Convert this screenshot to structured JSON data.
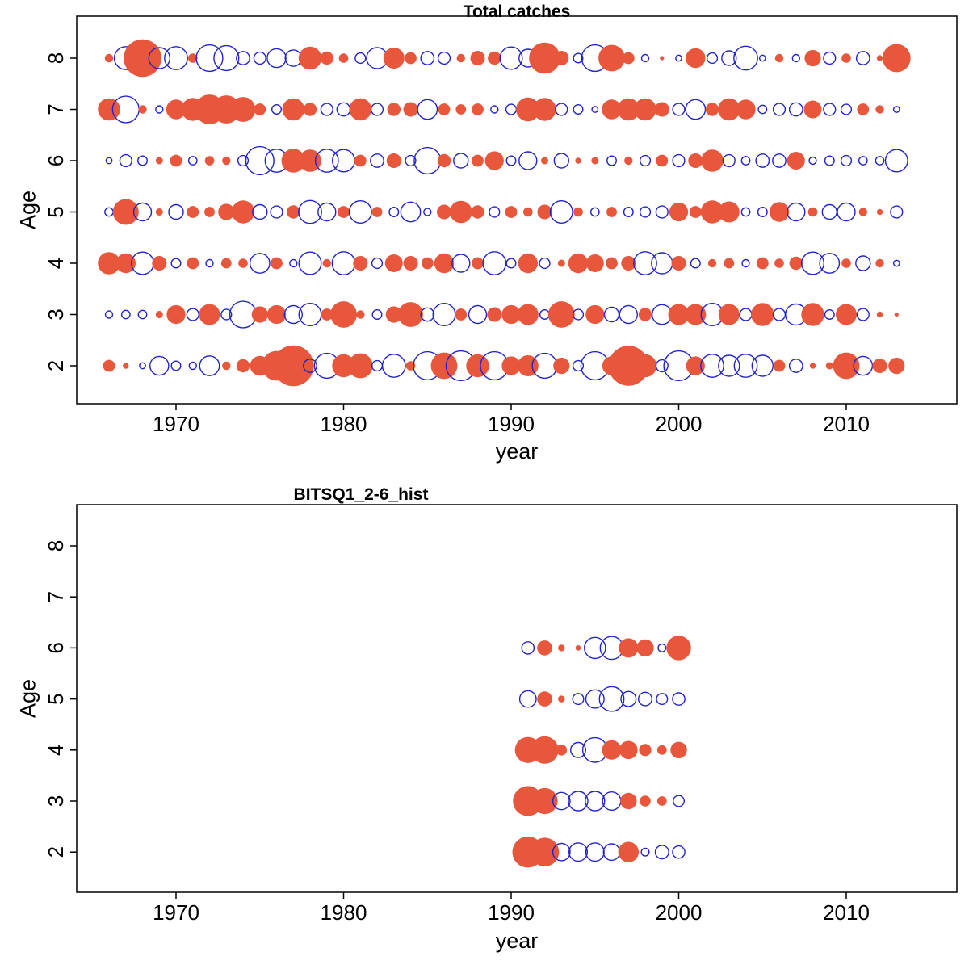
{
  "figure": {
    "background": "#ffffff",
    "positive_color": "#e8563c",
    "negative_color": "#2323cc",
    "axis_color": "#000000"
  },
  "chart_data": [
    {
      "type": "bubble",
      "title": "Total catches",
      "xlabel": "year",
      "ylabel": "Age",
      "x_ticks": [
        "1970",
        "1980",
        "1990",
        "2000",
        "2010"
      ],
      "y_ticks": [
        "2",
        "3",
        "4",
        "5",
        "6",
        "7",
        "8"
      ],
      "xlim": [
        1964,
        2016.5
      ],
      "ylim": [
        1.5,
        8.8
      ],
      "grid": false,
      "legend": null,
      "encoding": "filled circle = positive value, open circle = negative value, radius ~ sqrt(|value|)",
      "years": [
        1966,
        1967,
        1968,
        1969,
        1970,
        1971,
        1972,
        1973,
        1974,
        1975,
        1976,
        1977,
        1978,
        1979,
        1980,
        1981,
        1982,
        1983,
        1984,
        1985,
        1986,
        1987,
        1988,
        1989,
        1990,
        1991,
        1992,
        1993,
        1994,
        1995,
        1996,
        1997,
        1998,
        1999,
        2000,
        2001,
        2002,
        2003,
        2004,
        2005,
        2006,
        2007,
        2008,
        2009,
        2010,
        2011,
        2012,
        2013
      ],
      "series": [
        {
          "name": "age 8",
          "age": 8,
          "values": [
            0.04,
            -0.3,
            0.8,
            -0.25,
            -0.3,
            0.05,
            -0.4,
            -0.35,
            -0.1,
            -0.08,
            -0.2,
            -0.15,
            0.3,
            0.1,
            0.05,
            -0.06,
            -0.25,
            0.25,
            0.08,
            -0.1,
            -0.08,
            0.04,
            0.12,
            0.1,
            -0.28,
            -0.18,
            0.55,
            0.12,
            -0.05,
            -0.4,
            0.4,
            0.08,
            -0.03,
            0.01,
            -0.02,
            0.22,
            -0.06,
            -0.12,
            -0.32,
            -0.02,
            0.04,
            -0.03,
            0.15,
            -0.08,
            0.05,
            -0.1,
            0.02,
            0.45
          ]
        },
        {
          "name": "age 7",
          "age": 7,
          "values": [
            0.28,
            -0.4,
            0.04,
            -0.03,
            0.22,
            0.3,
            0.5,
            0.45,
            0.35,
            0.08,
            -0.05,
            0.28,
            0.1,
            -0.08,
            -0.1,
            0.28,
            -0.08,
            0.1,
            0.12,
            -0.22,
            0.08,
            0.06,
            0.08,
            -0.03,
            -0.06,
            0.32,
            0.3,
            -0.08,
            -0.05,
            -0.02,
            0.22,
            0.28,
            0.28,
            0.12,
            -0.08,
            -0.22,
            0.1,
            0.28,
            0.22,
            -0.04,
            -0.08,
            -0.1,
            0.18,
            -0.08,
            -0.06,
            0.08,
            0.04,
            -0.02
          ]
        },
        {
          "name": "age 6",
          "age": 6,
          "values": [
            -0.02,
            -0.08,
            -0.05,
            0.03,
            0.08,
            -0.04,
            0.05,
            0.04,
            -0.06,
            -0.45,
            -0.3,
            0.32,
            0.28,
            -0.3,
            -0.28,
            0.08,
            -0.1,
            0.12,
            -0.06,
            -0.4,
            0.1,
            -0.12,
            0.08,
            0.2,
            -0.05,
            -0.18,
            0.03,
            -0.12,
            0.02,
            0.03,
            -0.05,
            0.04,
            -0.06,
            0.08,
            -0.08,
            0.12,
            0.28,
            -0.08,
            -0.04,
            -0.1,
            -0.1,
            0.18,
            -0.03,
            -0.05,
            -0.06,
            -0.04,
            -0.04,
            -0.28
          ]
        },
        {
          "name": "age 5",
          "age": 5,
          "values": [
            -0.04,
            0.38,
            -0.18,
            0.03,
            -0.12,
            0.08,
            0.06,
            0.15,
            0.3,
            -0.12,
            -0.08,
            0.1,
            -0.3,
            -0.18,
            0.08,
            -0.28,
            0.06,
            -0.05,
            -0.22,
            -0.03,
            0.12,
            0.28,
            0.1,
            -0.06,
            0.08,
            0.05,
            0.12,
            -0.28,
            0.05,
            -0.04,
            0.06,
            -0.05,
            -0.06,
            -0.08,
            0.2,
            0.08,
            0.3,
            0.25,
            -0.04,
            -0.05,
            0.22,
            -0.18,
            0.05,
            -0.12,
            -0.18,
            0.04,
            0.02,
            -0.08
          ]
        },
        {
          "name": "age 4",
          "age": 4,
          "values": [
            0.28,
            0.22,
            -0.28,
            0.12,
            -0.05,
            0.08,
            -0.03,
            0.06,
            0.05,
            -0.22,
            0.08,
            -0.03,
            -0.28,
            0.04,
            -0.3,
            0.12,
            -0.06,
            0.18,
            0.12,
            0.08,
            0.22,
            -0.18,
            0.08,
            -0.3,
            -0.05,
            0.22,
            -0.06,
            0.03,
            0.22,
            0.18,
            0.08,
            0.12,
            -0.3,
            -0.25,
            0.12,
            -0.05,
            0.04,
            0.06,
            -0.03,
            0.08,
            0.05,
            0.1,
            -0.28,
            -0.22,
            0.05,
            -0.12,
            0.04,
            -0.02
          ]
        },
        {
          "name": "age 3",
          "age": 3,
          "values": [
            -0.03,
            -0.04,
            -0.04,
            0.03,
            0.2,
            -0.08,
            0.25,
            -0.06,
            -0.4,
            0.15,
            0.2,
            -0.18,
            -0.28,
            0.08,
            0.4,
            0.04,
            -0.05,
            0.15,
            0.35,
            -0.1,
            -0.28,
            0.08,
            -0.18,
            0.12,
            0.2,
            0.25,
            -0.05,
            0.4,
            -0.06,
            0.2,
            -0.12,
            -0.18,
            0.1,
            -0.22,
            0.25,
            0.25,
            -0.28,
            0.25,
            -0.08,
            0.3,
            -0.08,
            -0.25,
            0.3,
            -0.05,
            0.25,
            -0.08,
            0.02,
            0.01
          ]
        },
        {
          "name": "age 2",
          "age": 2,
          "values": [
            0.08,
            0.02,
            -0.02,
            -0.2,
            -0.05,
            -0.03,
            -0.22,
            0.04,
            0.1,
            0.22,
            0.5,
            0.95,
            -0.1,
            -0.35,
            0.3,
            0.35,
            -0.06,
            -0.3,
            0.05,
            -0.45,
            0.4,
            -0.5,
            0.3,
            -0.45,
            0.2,
            0.25,
            -0.35,
            0.15,
            -0.06,
            -0.45,
            0.2,
            0.9,
            0.3,
            -0.08,
            -0.5,
            0.2,
            -0.3,
            -0.25,
            -0.3,
            -0.25,
            0.08,
            -0.1,
            0.02,
            0.03,
            0.4,
            -0.2,
            0.12,
            0.15
          ]
        }
      ]
    },
    {
      "type": "bubble",
      "title": "BITSQ1_2-6_hist",
      "xlabel": "year",
      "ylabel": "Age",
      "x_ticks": [
        "1970",
        "1980",
        "1990",
        "2000",
        "2010"
      ],
      "y_ticks": [
        "2",
        "3",
        "4",
        "5",
        "6",
        "7",
        "8"
      ],
      "xlim": [
        1964,
        2016.5
      ],
      "ylim": [
        1.5,
        8.8
      ],
      "grid": false,
      "legend": null,
      "encoding": "filled circle = positive value, open circle = negative value, radius ~ sqrt(|value|)",
      "years": [
        1991,
        1992,
        1993,
        1994,
        1995,
        1996,
        1997,
        1998,
        1999,
        2000
      ],
      "series": [
        {
          "name": "age 6",
          "age": 6,
          "values": [
            -0.1,
            0.15,
            0.03,
            0.02,
            -0.3,
            -0.35,
            0.25,
            0.2,
            -0.04,
            0.4
          ]
        },
        {
          "name": "age 5",
          "age": 5,
          "values": [
            -0.18,
            0.15,
            0.03,
            -0.08,
            -0.22,
            -0.4,
            -0.15,
            -0.12,
            -0.08,
            -0.1
          ]
        },
        {
          "name": "age 4",
          "age": 4,
          "values": [
            0.45,
            0.5,
            0.08,
            -0.15,
            -0.4,
            0.25,
            0.22,
            0.1,
            0.06,
            0.18
          ]
        },
        {
          "name": "age 3",
          "age": 3,
          "values": [
            0.6,
            0.45,
            -0.2,
            -0.25,
            -0.25,
            -0.22,
            0.18,
            0.08,
            0.06,
            -0.08
          ]
        },
        {
          "name": "age 2",
          "age": 2,
          "values": [
            0.65,
            0.55,
            -0.2,
            -0.22,
            -0.22,
            -0.18,
            0.28,
            -0.04,
            -0.12,
            -0.1
          ]
        }
      ]
    }
  ]
}
